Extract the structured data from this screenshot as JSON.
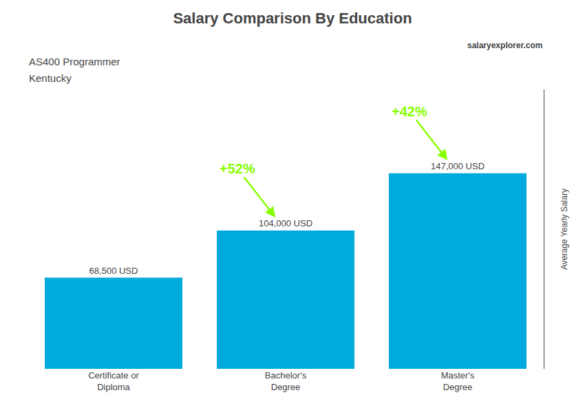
{
  "chart_data": {
    "type": "bar",
    "title": "Salary Comparison By Education",
    "subtitle": "AS400 Programmer",
    "ylabel": "Average Yearly Salary",
    "categories": [
      "Certificate or\nDiploma",
      "Bachelor's\nDegree",
      "Master's\nDegree"
    ],
    "values": [
      68500,
      104000,
      147000
    ],
    "value_labels": [
      "68,500 USD",
      "104,000 USD",
      "147,000 USD"
    ],
    "data_labels": true,
    "annotations": [
      "Kentucky",
      "+52%",
      "+42%",
      "salaryexplorer.com"
    ],
    "color": "#00aadd",
    "ylim": [
      0,
      210000
    ],
    "grid": false,
    "tick_labels": "x"
  }
}
